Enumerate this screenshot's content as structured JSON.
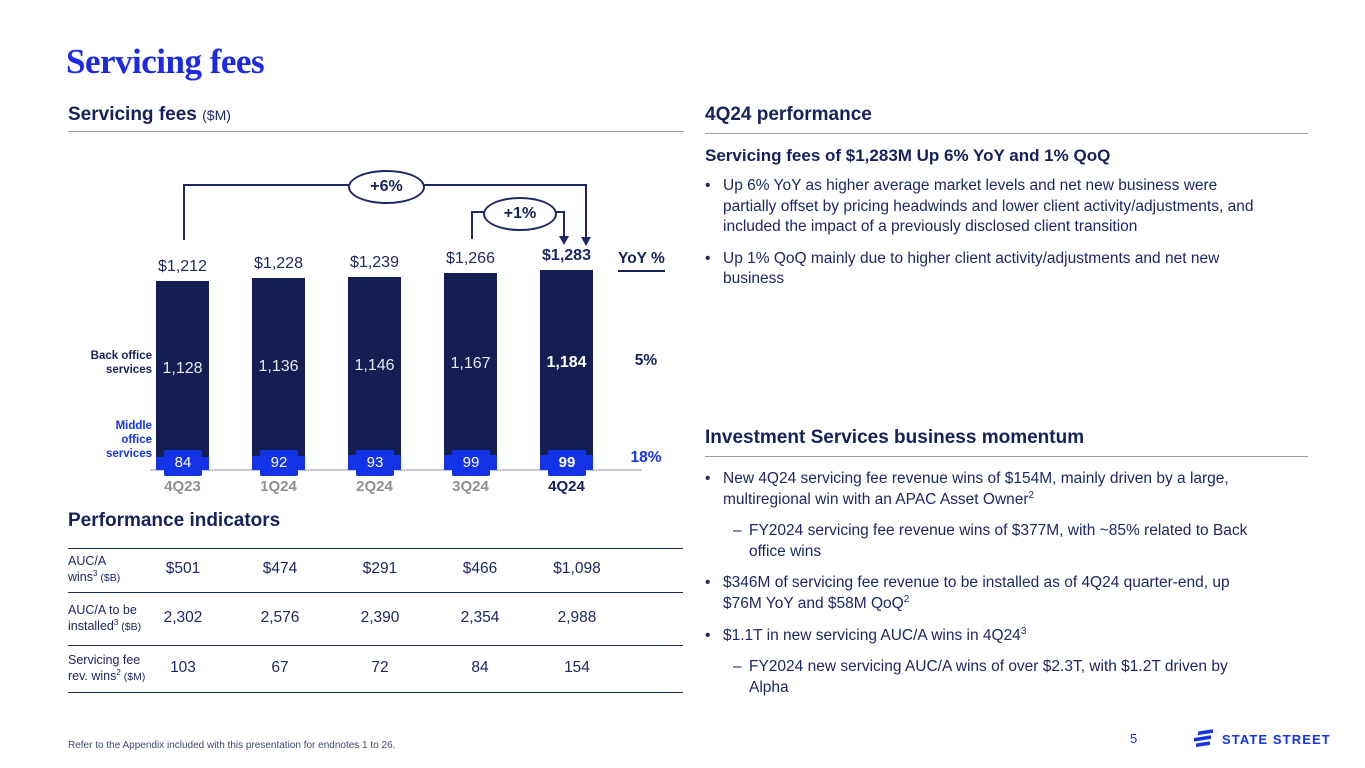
{
  "slide": {
    "title": "Servicing fees",
    "page_number": "5",
    "footnote": "Refer to the Appendix included with this presentation for endnotes 1 to 26.",
    "logo_text": "STATE STREET"
  },
  "colors": {
    "navy_bar": "#131f52",
    "navy_text": "#16215c",
    "accent_blue": "#1433e6",
    "gray_axis": "#8e9095"
  },
  "chart_section": {
    "heading": "Servicing fees",
    "heading_unit": "($M)"
  },
  "chart_data": {
    "type": "bar",
    "title": "Servicing fees ($M)",
    "categories": [
      "4Q23",
      "1Q24",
      "2Q24",
      "3Q24",
      "4Q24"
    ],
    "totals": [
      1212,
      1228,
      1239,
      1266,
      1283
    ],
    "total_labels": [
      "$1,212",
      "$1,228",
      "$1,239",
      "$1,266",
      "$1,283"
    ],
    "series": [
      {
        "name": "Back office services",
        "values": [
          1128,
          1136,
          1146,
          1167,
          1184
        ],
        "labels": [
          "1,128",
          "1,136",
          "1,146",
          "1,167",
          "1,184"
        ],
        "color": "#131f52",
        "yoy": "5%"
      },
      {
        "name": "Middle office services",
        "values": [
          84,
          92,
          93,
          99,
          99
        ],
        "labels": [
          "84",
          "92",
          "93",
          "99",
          "99"
        ],
        "color": "#1433e6",
        "yoy": "18%"
      }
    ],
    "yoy_header": "YoY %",
    "annotations": [
      {
        "label": "+6%",
        "from": "4Q23",
        "to": "4Q24"
      },
      {
        "label": "+1%",
        "from": "3Q24",
        "to": "4Q24"
      }
    ],
    "legend": {
      "back_office": [
        "Back office",
        "services"
      ],
      "middle_office": [
        "Middle",
        "office",
        "services"
      ]
    },
    "ylim": [
      0,
      1283
    ],
    "grid": false,
    "legend_position": "left"
  },
  "performance_indicators": {
    "heading": "Performance indicators",
    "rows": [
      {
        "label_line1": "AUC/A",
        "label_line2": "wins",
        "sup": "3",
        "unit": "($B)",
        "values": [
          "$501",
          "$474",
          "$291",
          "$466",
          "$1,098"
        ]
      },
      {
        "label_line1": "AUC/A to be",
        "label_line2": "installed",
        "sup": "3",
        "unit": "($B)",
        "values": [
          "2,302",
          "2,576",
          "2,390",
          "2,354",
          "2,988"
        ]
      },
      {
        "label_line1": "Servicing fee",
        "label_line2": "rev. wins",
        "sup": "2",
        "unit": "($M)",
        "values": [
          "103",
          "67",
          "72",
          "84",
          "154"
        ]
      }
    ]
  },
  "right": {
    "performance": {
      "heading": "4Q24 performance",
      "subheading": "Servicing fees of $1,283M Up 6% YoY and 1% QoQ",
      "bullets": [
        {
          "level": 1,
          "text": "Up 6% YoY as higher average market levels and net new business were partially offset by pricing headwinds and lower client activity/adjustments, and included the impact of a previously disclosed client transition",
          "sup": ""
        },
        {
          "level": 1,
          "text": "Up 1% QoQ mainly due to higher client activity/adjustments and net new business",
          "sup": ""
        }
      ]
    },
    "momentum": {
      "heading": "Investment Services business momentum",
      "bullets": [
        {
          "level": 1,
          "text": "New 4Q24 servicing fee revenue wins of $154M, mainly driven by a large, multiregional win with an APAC Asset Owner",
          "sup": "2"
        },
        {
          "level": 2,
          "text": "FY2024 servicing fee revenue wins of $377M, with ~85% related to Back office wins",
          "sup": ""
        },
        {
          "level": 1,
          "text": "$346M of servicing fee revenue to be installed as of 4Q24 quarter-end, up $76M YoY and $58M QoQ",
          "sup": "2"
        },
        {
          "level": 1,
          "text": "$1.1T in new servicing AUC/A wins in 4Q24",
          "sup": "3"
        },
        {
          "level": 2,
          "text": "FY2024 new servicing AUC/A wins of over $2.3T, with $1.2T driven by Alpha",
          "sup": ""
        }
      ]
    }
  }
}
